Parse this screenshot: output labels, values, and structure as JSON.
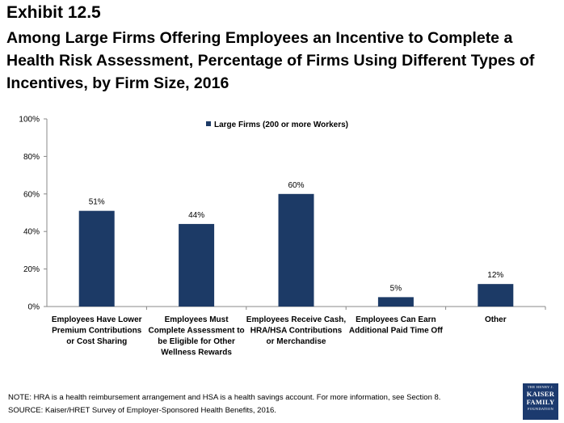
{
  "header": {
    "exhibit": "Exhibit 12.5",
    "title": "Among Large Firms Offering Employees an Incentive to Complete a Health Risk Assessment, Percentage of Firms Using Different Types of Incentives, by Firm Size, 2016"
  },
  "footer": {
    "note": "NOTE: HRA is a health reimbursement arrangement and HSA is a health savings account. For more information, see Section 8.",
    "source": "SOURCE: Kaiser/HRET Survey of Employer-Sponsored Health Benefits, 2016."
  },
  "logo": {
    "line1": "THE HENRY J.",
    "line2": "KAISER",
    "line3": "FAMILY",
    "line4": "FOUNDATION"
  },
  "colors": {
    "bar": "#1c3a66",
    "axis": "#888888"
  },
  "chart_data": {
    "type": "bar",
    "categories": [
      [
        "Employees Have Lower",
        "Premium Contributions",
        "or Cost Sharing"
      ],
      [
        "Employees Must",
        "Complete Assessment to",
        "be Eligible for Other",
        "Wellness Rewards"
      ],
      [
        "Employees Receive Cash,",
        "HRA/HSA Contributions",
        "or Merchandise"
      ],
      [
        "Employees Can Earn",
        "Additional Paid Time Off"
      ],
      [
        "Other"
      ]
    ],
    "series": [
      {
        "name": "Large Firms (200 or more Workers)",
        "values": [
          51,
          44,
          60,
          5,
          12
        ],
        "labels": [
          "51%",
          "44%",
          "60%",
          "5%",
          "12%"
        ]
      }
    ],
    "yticks": [
      "0%",
      "20%",
      "40%",
      "60%",
      "80%",
      "100%"
    ],
    "ylim": [
      0,
      100
    ],
    "legend_position": "top-center",
    "grid": false
  }
}
